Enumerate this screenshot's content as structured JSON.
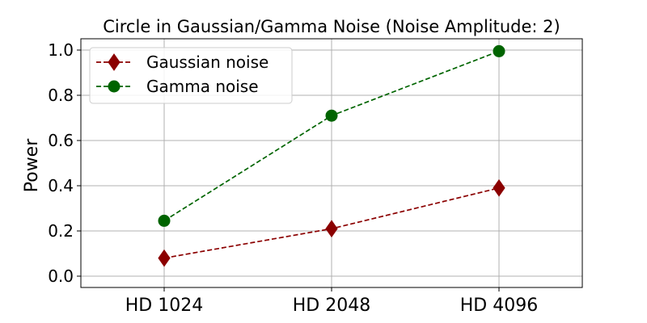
{
  "chart_data": {
    "type": "line",
    "title": "Circle in Gaussian/Gamma Noise (Noise Amplitude: 2)",
    "xlabel": "",
    "ylabel": "Power",
    "categories": [
      "HD 1024",
      "HD 2048",
      "HD 4096"
    ],
    "ylim": [
      -0.05,
      1.05
    ],
    "yticks": [
      0.0,
      0.2,
      0.4,
      0.6,
      0.8,
      1.0
    ],
    "ytick_labels": [
      "0.0",
      "0.2",
      "0.4",
      "0.6",
      "0.8",
      "1.0"
    ],
    "grid": true,
    "legend_position": "top-left",
    "series": [
      {
        "name": "Gaussian noise",
        "values": [
          0.08,
          0.21,
          0.39
        ],
        "color": "#8b0000",
        "marker": "diamond",
        "linestyle": "dashed"
      },
      {
        "name": "Gamma noise",
        "values": [
          0.245,
          0.71,
          0.995
        ],
        "color": "#006400",
        "marker": "circle",
        "linestyle": "dashed"
      }
    ]
  }
}
